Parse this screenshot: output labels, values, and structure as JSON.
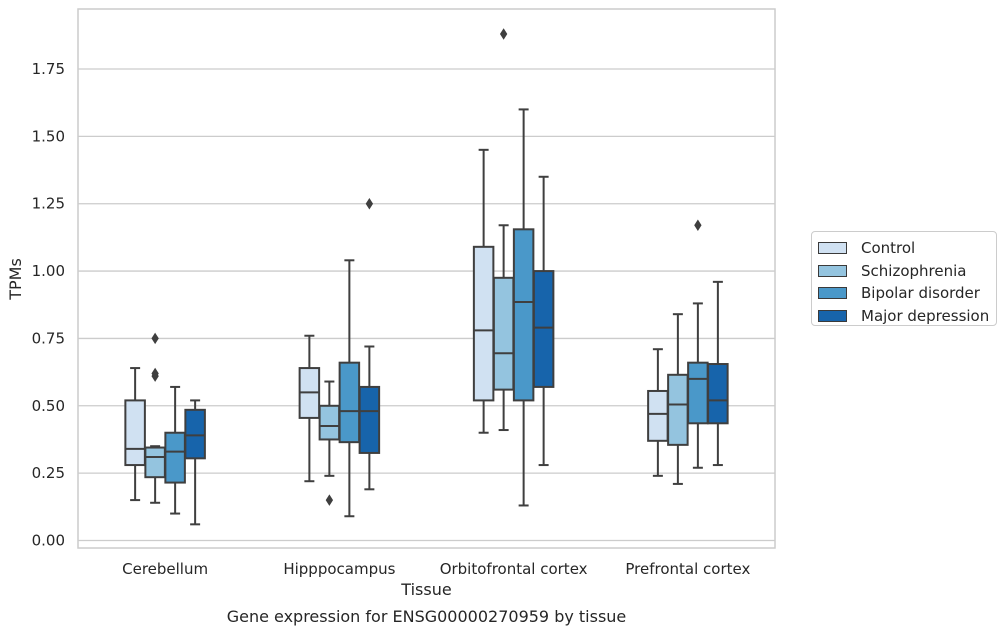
{
  "chart_data": {
    "type": "box",
    "title": "Gene expression for ENSG00000270959 by tissue",
    "xlabel": "Tissue",
    "ylabel": "TPMs",
    "ylim": [
      -0.02,
      1.96
    ],
    "yticks": [
      "0.00",
      "0.25",
      "0.50",
      "0.75",
      "1.00",
      "1.25",
      "1.50",
      "1.75"
    ],
    "grid": true,
    "legend_position": "right",
    "categories": [
      "Cerebellum",
      "Hipppocampus",
      "Orbitofrontal cortex",
      "Prefrontal cortex"
    ],
    "series": [
      {
        "name": "Control",
        "color": "#d0e1f2",
        "boxes": [
          {
            "whislo": 0.15,
            "q1": 0.28,
            "med": 0.34,
            "q3": 0.52,
            "whishi": 0.64,
            "fliers": []
          },
          {
            "whislo": 0.22,
            "q1": 0.455,
            "med": 0.55,
            "q3": 0.64,
            "whishi": 0.76,
            "fliers": []
          },
          {
            "whislo": 0.4,
            "q1": 0.52,
            "med": 0.78,
            "q3": 1.09,
            "whishi": 1.45,
            "fliers": []
          },
          {
            "whislo": 0.24,
            "q1": 0.37,
            "med": 0.47,
            "q3": 0.555,
            "whishi": 0.71,
            "fliers": []
          }
        ]
      },
      {
        "name": "Schizophrenia",
        "color": "#94c4df",
        "boxes": [
          {
            "whislo": 0.14,
            "q1": 0.235,
            "med": 0.31,
            "q3": 0.345,
            "whishi": 0.35,
            "fliers": [
              0.61,
              0.62,
              0.75
            ]
          },
          {
            "whislo": 0.24,
            "q1": 0.375,
            "med": 0.425,
            "q3": 0.5,
            "whishi": 0.59,
            "fliers": [
              0.15
            ]
          },
          {
            "whislo": 0.41,
            "q1": 0.56,
            "med": 0.695,
            "q3": 0.975,
            "whishi": 1.17,
            "fliers": [
              1.88
            ]
          },
          {
            "whislo": 0.21,
            "q1": 0.355,
            "med": 0.505,
            "q3": 0.615,
            "whishi": 0.84,
            "fliers": []
          }
        ]
      },
      {
        "name": "Bipolar disorder",
        "color": "#4a98c9",
        "boxes": [
          {
            "whislo": 0.1,
            "q1": 0.215,
            "med": 0.33,
            "q3": 0.4,
            "whishi": 0.57,
            "fliers": []
          },
          {
            "whislo": 0.09,
            "q1": 0.365,
            "med": 0.48,
            "q3": 0.66,
            "whishi": 1.04,
            "fliers": []
          },
          {
            "whislo": 0.13,
            "q1": 0.52,
            "med": 0.885,
            "q3": 1.155,
            "whishi": 1.6,
            "fliers": []
          },
          {
            "whislo": 0.27,
            "q1": 0.435,
            "med": 0.6,
            "q3": 0.66,
            "whishi": 0.88,
            "fliers": [
              1.17
            ]
          }
        ]
      },
      {
        "name": "Major depression",
        "color": "#1764ab",
        "boxes": [
          {
            "whislo": 0.06,
            "q1": 0.305,
            "med": 0.39,
            "q3": 0.485,
            "whishi": 0.52,
            "fliers": []
          },
          {
            "whislo": 0.19,
            "q1": 0.325,
            "med": 0.48,
            "q3": 0.57,
            "whishi": 0.72,
            "fliers": [
              1.25
            ]
          },
          {
            "whislo": 0.28,
            "q1": 0.57,
            "med": 0.79,
            "q3": 1.0,
            "whishi": 1.35,
            "fliers": []
          },
          {
            "whislo": 0.28,
            "q1": 0.435,
            "med": 0.52,
            "q3": 0.655,
            "whishi": 0.96,
            "fliers": []
          }
        ]
      }
    ]
  }
}
